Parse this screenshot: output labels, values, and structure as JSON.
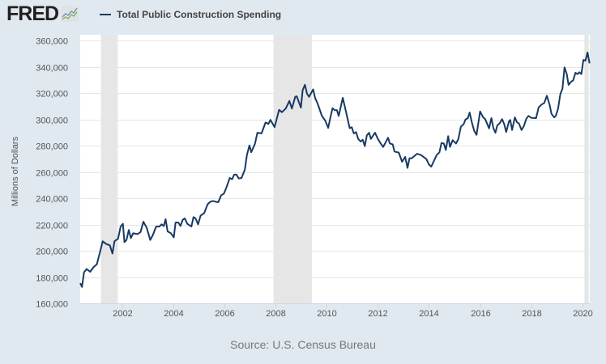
{
  "logo": {
    "text": "FRED"
  },
  "chart_data": {
    "type": "line",
    "title": "",
    "legend": [
      {
        "label": "Total Public Construction Spending",
        "color": "#173a64"
      }
    ],
    "legend_position": "top-left",
    "xlabel": "",
    "ylabel": "Millions of Dollars",
    "xlim": [
      2000.36,
      2020.29
    ],
    "ylim": [
      160000,
      360000
    ],
    "grid": true,
    "yticks": [
      160000,
      180000,
      200000,
      220000,
      240000,
      260000,
      280000,
      300000,
      320000,
      340000,
      360000
    ],
    "ytick_labels": [
      "160,000",
      "180,000",
      "200,000",
      "220,000",
      "240,000",
      "260,000",
      "280,000",
      "300,000",
      "320,000",
      "340,000",
      "360,000"
    ],
    "xticks": [
      2002,
      2004,
      2006,
      2008,
      2010,
      2012,
      2014,
      2016,
      2018,
      2020
    ],
    "xtick_labels": [
      "2002",
      "2004",
      "2006",
      "2008",
      "2010",
      "2012",
      "2014",
      "2016",
      "2018",
      "2020"
    ],
    "recessions": [
      [
        2001.17,
        2001.83
      ],
      [
        2007.92,
        2009.42
      ],
      [
        2020.08,
        2020.25
      ]
    ],
    "series": [
      {
        "name": "Total Public Construction Spending",
        "x": [
          2000.36,
          2000.43,
          2000.51,
          2000.61,
          2000.75,
          2000.89,
          2001.01,
          2001.12,
          2001.24,
          2001.38,
          2001.52,
          2001.62,
          2001.7,
          2001.84,
          2001.94,
          2002.03,
          2002.09,
          2002.17,
          2002.26,
          2002.34,
          2002.43,
          2002.6,
          2002.72,
          2002.83,
          2002.96,
          2003.1,
          2003.21,
          2003.33,
          2003.46,
          2003.54,
          2003.63,
          2003.7,
          2003.78,
          2003.91,
          2004.02,
          2004.09,
          2004.2,
          2004.28,
          2004.37,
          2004.45,
          2004.55,
          2004.71,
          2004.79,
          2004.87,
          2004.97,
          2005.07,
          2005.21,
          2005.34,
          2005.45,
          2005.55,
          2005.66,
          2005.76,
          2005.87,
          2005.98,
          2006.08,
          2006.21,
          2006.3,
          2006.38,
          2006.47,
          2006.56,
          2006.67,
          2006.8,
          2006.88,
          2006.98,
          2007.05,
          2007.19,
          2007.29,
          2007.45,
          2007.61,
          2007.72,
          2007.8,
          2007.96,
          2008.14,
          2008.25,
          2008.4,
          2008.54,
          2008.64,
          2008.77,
          2008.83,
          2008.99,
          2009.06,
          2009.15,
          2009.23,
          2009.31,
          2009.47,
          2009.55,
          2009.63,
          2009.7,
          2009.81,
          2009.95,
          2010.06,
          2010.14,
          2010.23,
          2010.32,
          2010.4,
          2010.47,
          2010.63,
          2010.77,
          2010.9,
          2010.98,
          2011.06,
          2011.15,
          2011.23,
          2011.33,
          2011.41,
          2011.49,
          2011.57,
          2011.66,
          2011.73,
          2011.89,
          2012.0,
          2012.1,
          2012.21,
          2012.4,
          2012.47,
          2012.58,
          2012.65,
          2012.82,
          2012.95,
          2013.07,
          2013.16,
          2013.24,
          2013.33,
          2013.53,
          2013.69,
          2013.9,
          2014.0,
          2014.09,
          2014.3,
          2014.41,
          2014.49,
          2014.58,
          2014.66,
          2014.75,
          2014.82,
          2014.93,
          2015.06,
          2015.15,
          2015.25,
          2015.36,
          2015.43,
          2015.52,
          2015.59,
          2015.68,
          2015.77,
          2015.86,
          2016.0,
          2016.12,
          2016.2,
          2016.35,
          2016.44,
          2016.52,
          2016.6,
          2016.67,
          2016.76,
          2016.86,
          2016.94,
          2017.02,
          2017.13,
          2017.18,
          2017.25,
          2017.36,
          2017.44,
          2017.52,
          2017.62,
          2017.71,
          2017.81,
          2017.89,
          2018.01,
          2018.19,
          2018.29,
          2018.4,
          2018.51,
          2018.61,
          2018.72,
          2018.79,
          2018.9,
          2018.96,
          2019.05,
          2019.14,
          2019.22,
          2019.3,
          2019.39,
          2019.46,
          2019.57,
          2019.64,
          2019.73,
          2019.81,
          2019.88,
          2019.96,
          2020.04,
          2020.12,
          2020.2,
          2020.28
        ],
        "y": [
          175400,
          172500,
          183600,
          186100,
          184000,
          187700,
          189700,
          197900,
          207200,
          205100,
          204100,
          197900,
          207200,
          209200,
          218400,
          220500,
          206600,
          208200,
          215800,
          209600,
          213300,
          212700,
          214300,
          222100,
          217400,
          208200,
          212300,
          218400,
          218400,
          220100,
          218800,
          224000,
          214700,
          213300,
          210200,
          221500,
          221500,
          218800,
          223600,
          224600,
          220500,
          218400,
          225600,
          224600,
          220100,
          226700,
          228700,
          235300,
          237300,
          237900,
          237300,
          236900,
          242100,
          243500,
          248200,
          255400,
          254400,
          257900,
          257900,
          255000,
          255400,
          261600,
          272900,
          280100,
          275000,
          281100,
          289800,
          289300,
          297600,
          296500,
          299600,
          294100,
          307200,
          305400,
          308200,
          314000,
          308200,
          317100,
          317500,
          308900,
          322200,
          326300,
          319600,
          317100,
          322800,
          316100,
          312600,
          308900,
          302800,
          298700,
          293500,
          301100,
          308500,
          306900,
          306900,
          302600,
          316300,
          304600,
          293300,
          294000,
          289200,
          290300,
          285100,
          283100,
          284500,
          279600,
          287800,
          289800,
          285100,
          289800,
          285100,
          282000,
          279000,
          286000,
          281600,
          281000,
          275500,
          274700,
          267700,
          271400,
          263000,
          270400,
          270400,
          273800,
          272800,
          269700,
          265600,
          264000,
          272800,
          274900,
          282000,
          281600,
          276700,
          287200,
          279000,
          284100,
          281600,
          285100,
          294400,
          296400,
          299900,
          300900,
          305200,
          297400,
          291300,
          288200,
          306000,
          301500,
          300100,
          293100,
          300900,
          293300,
          289800,
          295400,
          296800,
          300100,
          296400,
          290300,
          298500,
          299500,
          291900,
          301500,
          297800,
          296800,
          291900,
          294800,
          300500,
          302600,
          301100,
          300900,
          309100,
          311200,
          312400,
          317900,
          310800,
          304200,
          301500,
          302600,
          308300,
          319400,
          323100,
          339500,
          334400,
          326200,
          328800,
          329600,
          335400,
          334400,
          335800,
          334400,
          345200,
          344600,
          350800,
          342600
        ]
      }
    ]
  },
  "source": "Source: U.S. Census Bureau"
}
